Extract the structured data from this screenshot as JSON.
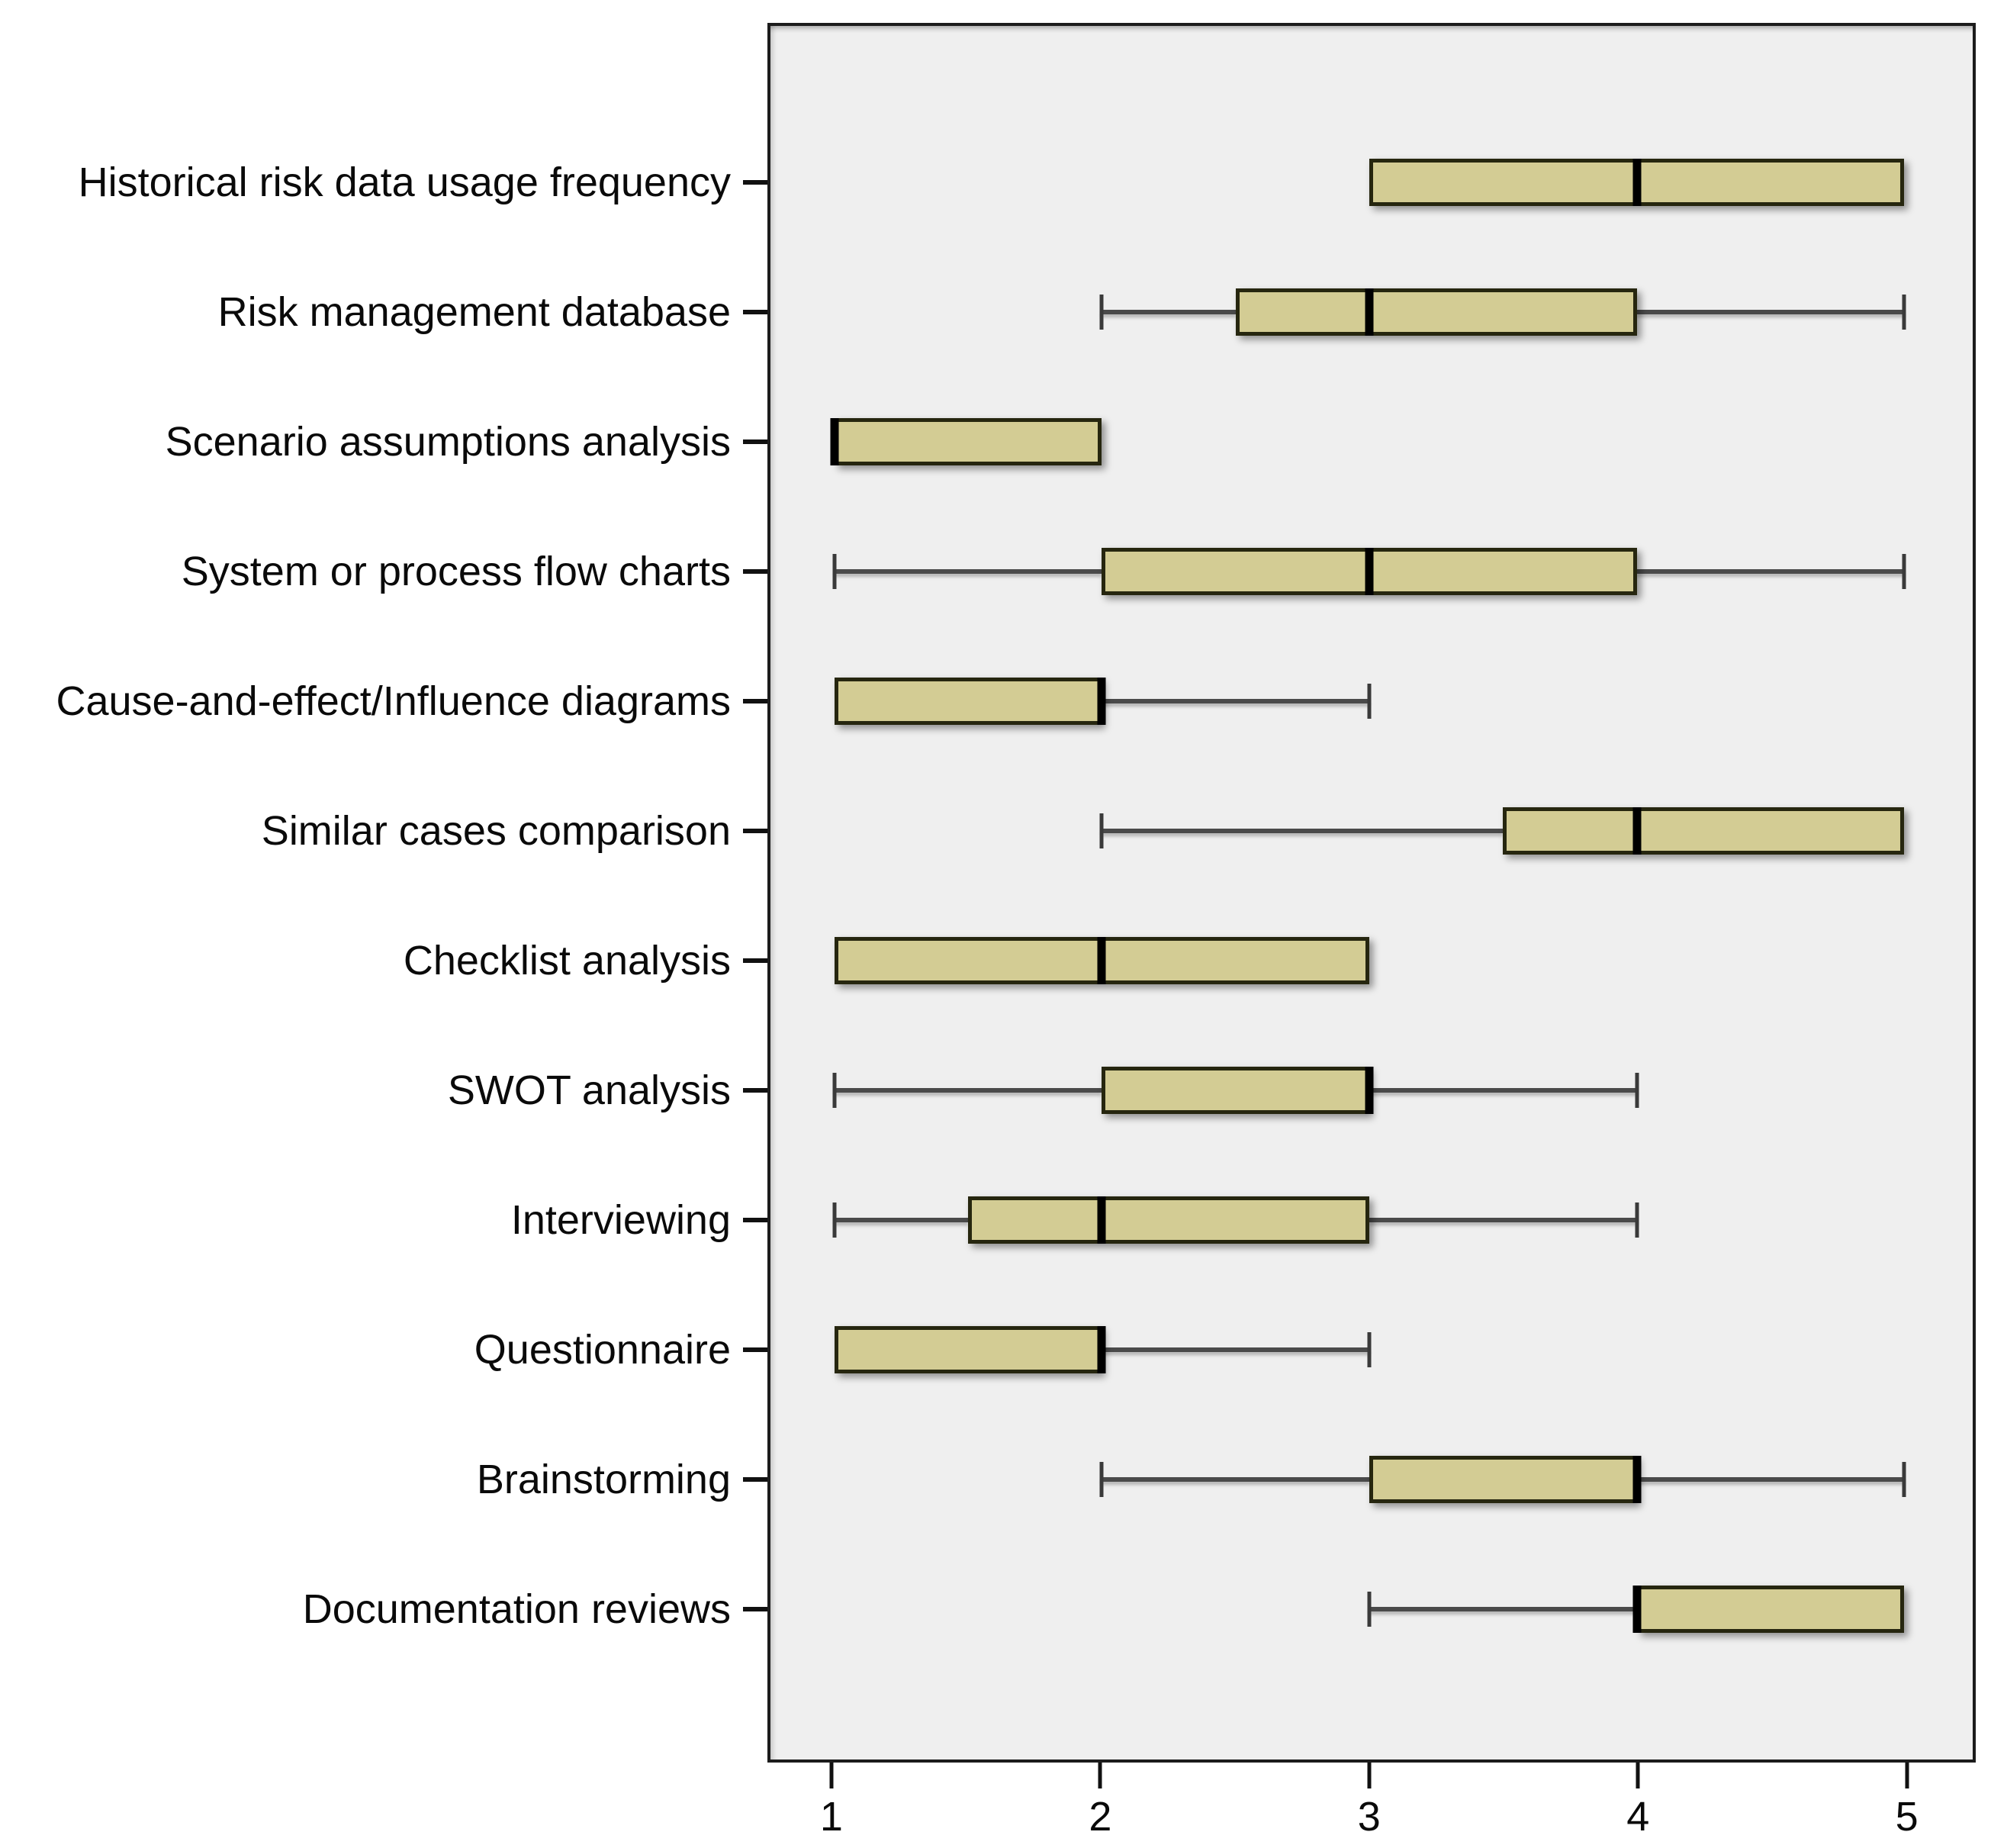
{
  "chart_data": {
    "type": "boxplot",
    "orientation": "horizontal",
    "title": "",
    "xlabel": "",
    "ylabel": "",
    "xlim": [
      1,
      5
    ],
    "x_ticks": [
      1,
      2,
      3,
      4,
      5
    ],
    "grid": false,
    "legend": false,
    "categories": [
      "Historical risk data usage frequency",
      "Risk management database",
      "Scenario assumptions analysis",
      "System or process flow charts",
      "Cause-and-effect/Influence diagrams",
      "Similar cases comparison",
      "Checklist analysis",
      "SWOT analysis",
      "Interviewing",
      "Questionnaire",
      "Brainstorming",
      "Documentation reviews"
    ],
    "series": [
      {
        "category": "Historical risk data usage frequency",
        "whisker_low": 3,
        "q1": 3,
        "median": 4,
        "q3": 5,
        "whisker_high": 5
      },
      {
        "category": "Risk management database",
        "whisker_low": 2,
        "q1": 2.5,
        "median": 3,
        "q3": 4,
        "whisker_high": 5
      },
      {
        "category": "Scenario assumptions analysis",
        "whisker_low": 1,
        "q1": 1,
        "median": 1,
        "q3": 2,
        "whisker_high": 2
      },
      {
        "category": "System or process flow charts",
        "whisker_low": 1,
        "q1": 2,
        "median": 3,
        "q3": 4,
        "whisker_high": 5
      },
      {
        "category": "Cause-and-effect/Influence diagrams",
        "whisker_low": 1,
        "q1": 1,
        "median": 2,
        "q3": 2,
        "whisker_high": 3
      },
      {
        "category": "Similar cases comparison",
        "whisker_low": 2,
        "q1": 3.5,
        "median": 4,
        "q3": 5,
        "whisker_high": 5
      },
      {
        "category": "Checklist analysis",
        "whisker_low": 1,
        "q1": 1,
        "median": 2,
        "q3": 3,
        "whisker_high": 3
      },
      {
        "category": "SWOT analysis",
        "whisker_low": 1,
        "q1": 2,
        "median": 3,
        "q3": 3,
        "whisker_high": 4
      },
      {
        "category": "Interviewing",
        "whisker_low": 1,
        "q1": 1.5,
        "median": 2,
        "q3": 3,
        "whisker_high": 4
      },
      {
        "category": "Questionnaire",
        "whisker_low": 1,
        "q1": 1,
        "median": 2,
        "q3": 2,
        "whisker_high": 3
      },
      {
        "category": "Brainstorming",
        "whisker_low": 2,
        "q1": 3,
        "median": 4,
        "q3": 4,
        "whisker_high": 5
      },
      {
        "category": "Documentation reviews",
        "whisker_low": 3,
        "q1": 4,
        "median": 4,
        "q3": 5,
        "whisker_high": 5
      }
    ]
  },
  "colors": {
    "box_fill": "#d3cc94",
    "box_border": "#26260f",
    "median": "#000000",
    "whisker": "#4a4a4a",
    "plot_background": "#efefef",
    "frame": "#1c1c1c",
    "page_background": "#ffffff",
    "text": "#0a0a0a"
  }
}
